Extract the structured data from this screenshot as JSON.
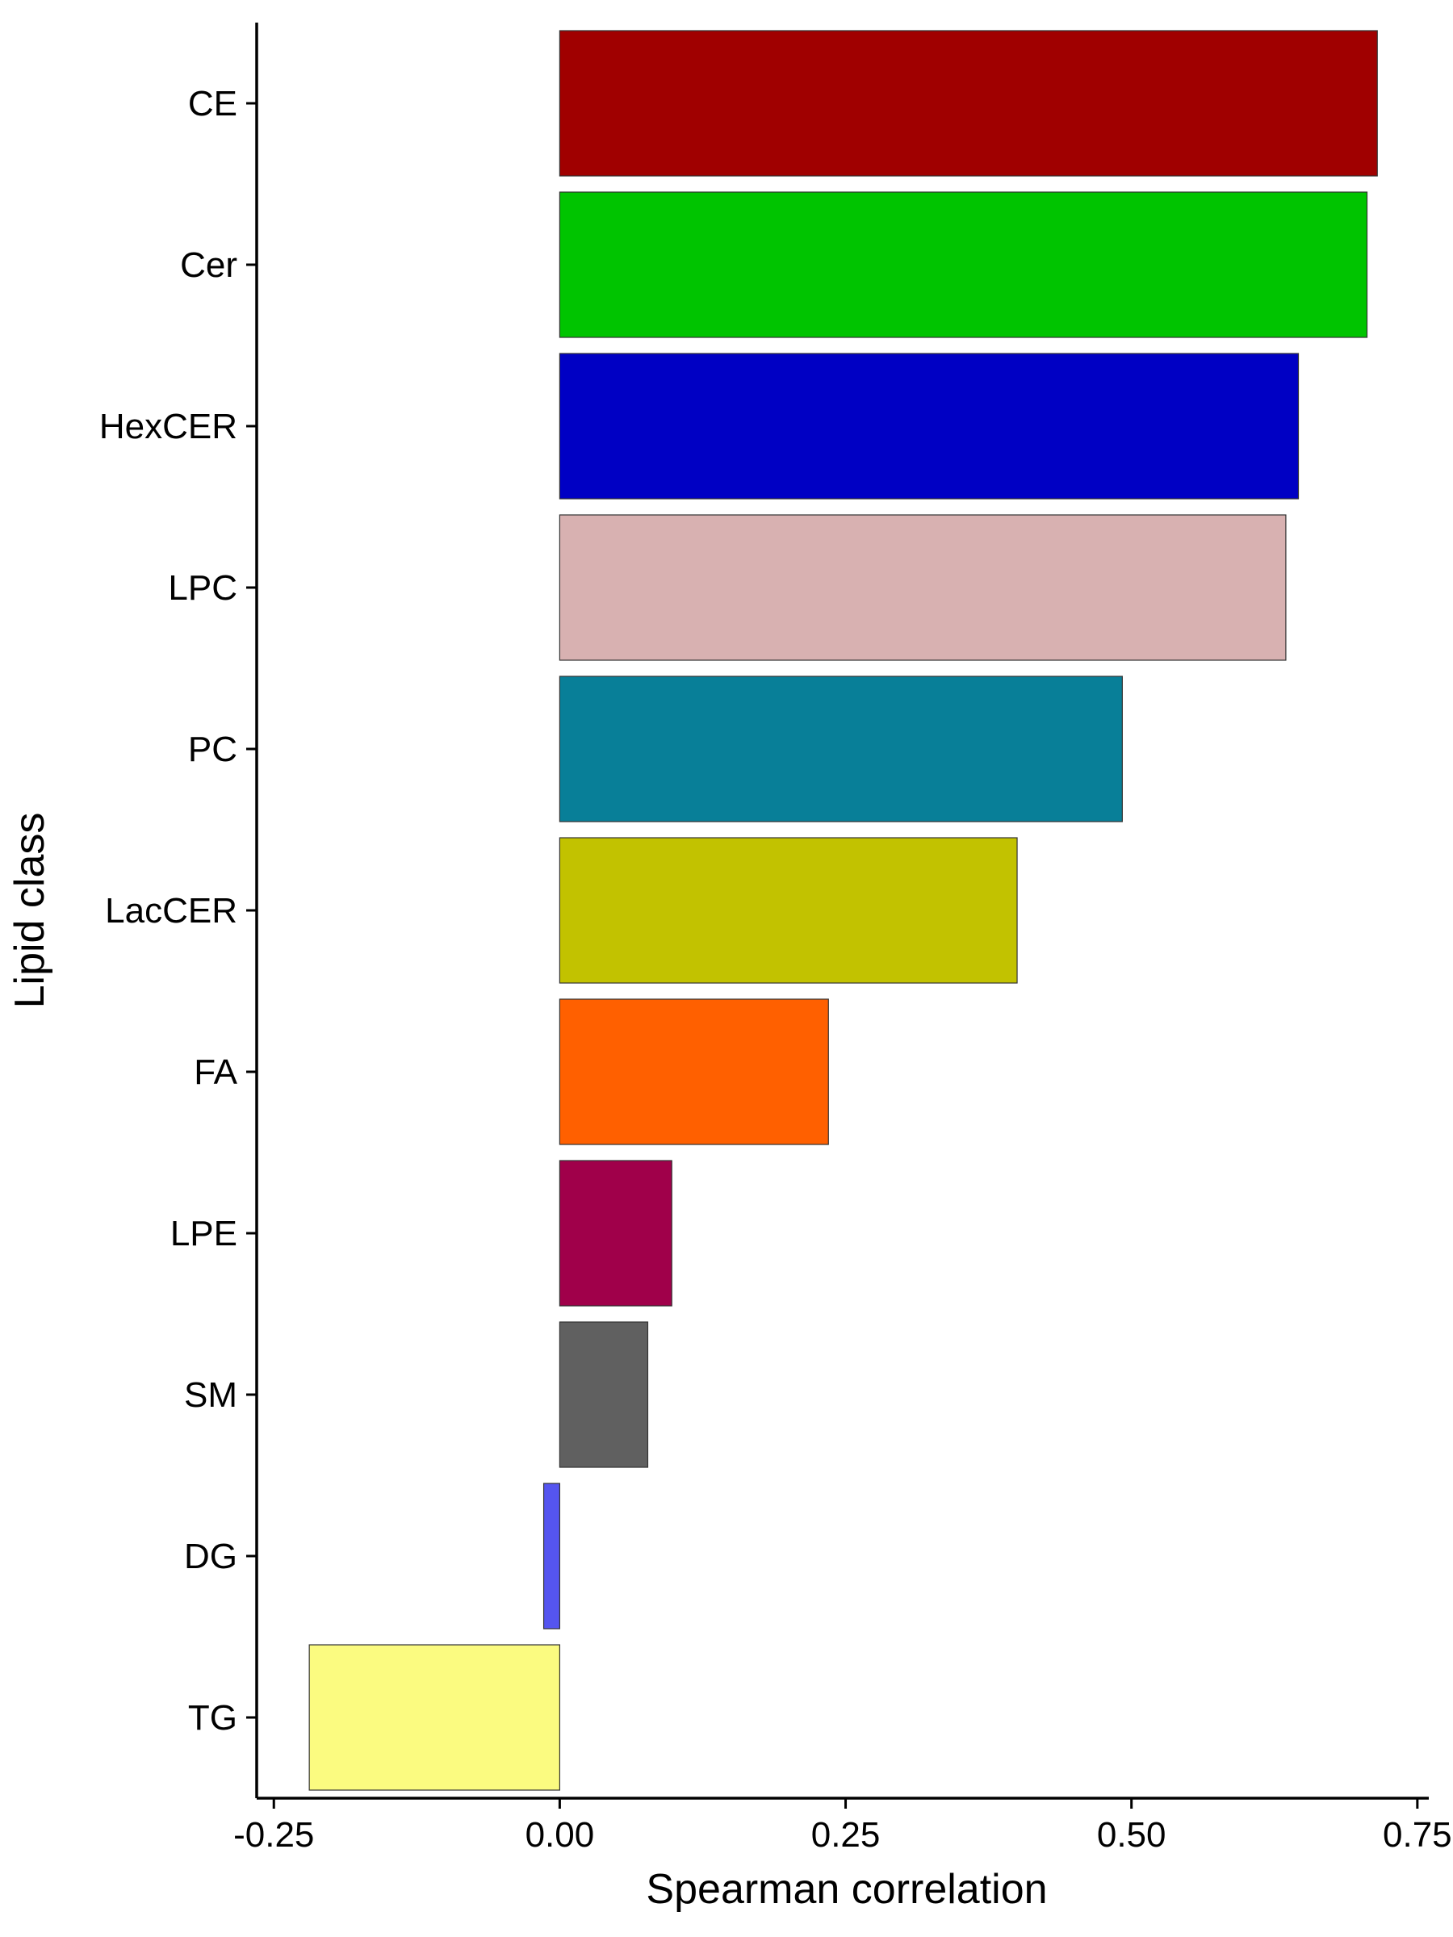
{
  "chart_data": {
    "type": "bar",
    "orientation": "horizontal",
    "xlabel": "Spearman correlation",
    "ylabel": "Lipid class",
    "xlim": [
      -0.265,
      0.76
    ],
    "xticks": [
      -0.25,
      0.0,
      0.25,
      0.5,
      0.75
    ],
    "xtick_labels": [
      "-0.25",
      "0.00",
      "0.25",
      "0.50",
      "0.75"
    ],
    "grid": false,
    "legend": "none",
    "categories": [
      "CE",
      "Cer",
      "HexCER",
      "LPC",
      "PC",
      "LacCER",
      "FA",
      "LPE",
      "SM",
      "DG",
      "TG"
    ],
    "values": [
      0.715,
      0.706,
      0.646,
      0.635,
      0.492,
      0.4,
      0.235,
      0.098,
      0.077,
      -0.014,
      -0.219
    ],
    "colors": [
      "#A00000",
      "#00C400",
      "#0000C4",
      "#D8B1B1",
      "#087F98",
      "#C2C200",
      "#FF6000",
      "#A0004A",
      "#606060",
      "#5555F0",
      "#FBFB80"
    ]
  }
}
